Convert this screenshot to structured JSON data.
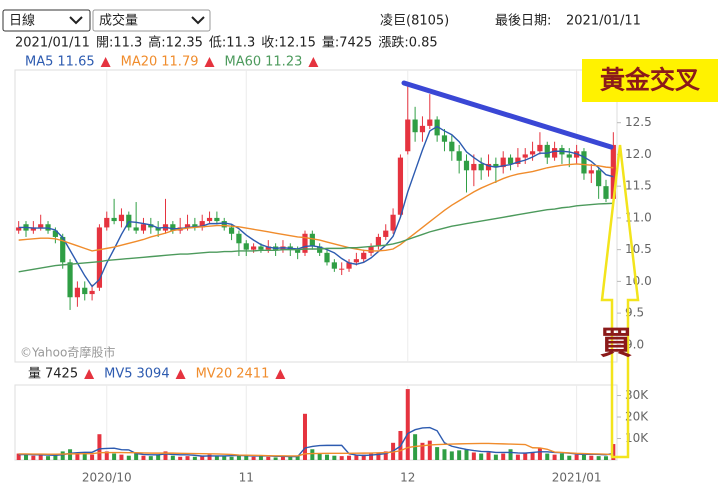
{
  "ui": {
    "period": "日線",
    "indicator": "成交量",
    "stock": "凌巨(8105)",
    "last_date_label": "最後日期:",
    "date": "2021/01/11",
    "info_labels": [
      "開:",
      "高:",
      "低:",
      "收:",
      "量:",
      "漲跌:"
    ],
    "change": 0.85,
    "annotation_cross": "黃金交叉",
    "annotation_buy": "買"
  },
  "chart_data": {
    "type": "candlestick",
    "categories": [
      null,
      null,
      null,
      null,
      null,
      null,
      null,
      null,
      null,
      null,
      null,
      null,
      "2020/10",
      null,
      null,
      null,
      null,
      null,
      null,
      null,
      null,
      null,
      null,
      null,
      null,
      null,
      null,
      null,
      null,
      null,
      null,
      "11",
      null,
      null,
      null,
      null,
      null,
      null,
      null,
      null,
      null,
      null,
      null,
      null,
      null,
      null,
      null,
      null,
      null,
      null,
      null,
      null,
      null,
      "12",
      null,
      null,
      null,
      null,
      null,
      null,
      null,
      null,
      null,
      null,
      null,
      null,
      null,
      null,
      null,
      null,
      null,
      null,
      null,
      null,
      null,
      null,
      "2021/01",
      null,
      null,
      null,
      null,
      null
    ],
    "open": [
      10.8,
      10.9,
      10.8,
      10.85,
      10.9,
      10.8,
      10.7,
      10.3,
      9.75,
      9.9,
      9.8,
      9.9,
      10.85,
      11.0,
      10.95,
      11.05,
      10.85,
      10.8,
      10.9,
      10.85,
      10.8,
      10.9,
      10.8,
      10.85,
      10.9,
      10.85,
      10.95,
      11.0,
      10.95,
      10.85,
      10.75,
      10.6,
      10.5,
      10.55,
      10.5,
      10.55,
      10.5,
      10.55,
      10.5,
      10.45,
      10.75,
      10.55,
      10.45,
      10.3,
      10.2,
      10.2,
      10.3,
      10.35,
      10.45,
      10.55,
      10.7,
      10.8,
      11.05,
      12.05,
      12.55,
      12.35,
      12.45,
      12.55,
      12.3,
      12.2,
      12.05,
      11.9,
      11.75,
      11.85,
      11.75,
      11.85,
      11.8,
      11.95,
      11.85,
      11.95,
      12.0,
      12.05,
      12.15,
      11.95,
      12.1,
      12.0,
      11.95,
      12.05,
      11.7,
      11.75,
      11.5,
      11.3
    ],
    "high": [
      10.95,
      10.95,
      10.95,
      11.05,
      10.95,
      10.85,
      10.75,
      10.35,
      10.0,
      10.0,
      9.95,
      10.9,
      11.1,
      11.3,
      11.15,
      11.1,
      11.25,
      11.0,
      11.0,
      10.95,
      11.3,
      10.95,
      11.0,
      11.05,
      11.0,
      11.05,
      11.1,
      11.1,
      11.0,
      10.9,
      10.8,
      10.65,
      10.6,
      10.6,
      10.65,
      10.6,
      10.65,
      10.6,
      10.55,
      10.8,
      10.8,
      10.6,
      10.5,
      10.35,
      10.3,
      10.35,
      10.45,
      10.5,
      10.6,
      10.75,
      10.9,
      11.15,
      12.0,
      13.1,
      12.75,
      12.6,
      12.95,
      12.6,
      12.4,
      12.3,
      12.15,
      12.0,
      12.0,
      11.95,
      12.0,
      11.95,
      12.05,
      12.0,
      12.1,
      12.1,
      12.2,
      12.35,
      12.2,
      12.2,
      12.15,
      12.1,
      12.15,
      12.1,
      11.85,
      11.8,
      11.6,
      12.35
    ],
    "low": [
      10.75,
      10.7,
      10.75,
      10.8,
      10.75,
      10.6,
      10.2,
      9.55,
      9.6,
      9.7,
      9.7,
      9.85,
      10.8,
      10.9,
      10.85,
      10.8,
      10.75,
      10.75,
      10.75,
      10.7,
      10.75,
      10.75,
      10.75,
      10.8,
      10.8,
      10.8,
      10.9,
      10.9,
      10.8,
      10.65,
      10.4,
      10.4,
      10.45,
      10.45,
      10.45,
      10.4,
      10.45,
      10.4,
      10.35,
      10.4,
      10.5,
      10.4,
      10.25,
      10.15,
      10.1,
      10.15,
      10.25,
      10.3,
      10.4,
      10.5,
      10.65,
      10.75,
      11.0,
      12.0,
      12.2,
      12.2,
      12.4,
      12.2,
      12.05,
      11.9,
      11.7,
      11.4,
      11.5,
      11.6,
      11.65,
      11.55,
      11.7,
      11.75,
      11.8,
      11.85,
      11.9,
      12.0,
      11.85,
      11.9,
      11.85,
      11.8,
      11.85,
      11.6,
      11.55,
      11.3,
      11.25,
      11.3
    ],
    "close": [
      10.85,
      10.8,
      10.85,
      10.9,
      10.8,
      10.7,
      10.3,
      9.75,
      9.9,
      9.8,
      9.85,
      10.85,
      11.0,
      10.95,
      11.05,
      10.85,
      10.8,
      10.9,
      10.85,
      10.8,
      10.9,
      10.8,
      10.85,
      10.9,
      10.85,
      10.95,
      11.0,
      10.95,
      10.85,
      10.75,
      10.6,
      10.5,
      10.55,
      10.5,
      10.55,
      10.5,
      10.55,
      10.5,
      10.45,
      10.75,
      10.55,
      10.45,
      10.3,
      10.2,
      10.2,
      10.3,
      10.35,
      10.45,
      10.55,
      10.7,
      10.8,
      11.05,
      11.95,
      12.55,
      12.35,
      12.45,
      12.55,
      12.3,
      12.2,
      12.05,
      11.9,
      11.75,
      11.85,
      11.75,
      11.85,
      11.8,
      11.95,
      11.85,
      11.95,
      12.0,
      12.05,
      12.15,
      11.95,
      12.1,
      12.0,
      11.95,
      12.05,
      11.7,
      11.75,
      11.5,
      11.3,
      12.15
    ],
    "volume": [
      3000,
      2500,
      2000,
      2200,
      1800,
      2500,
      4000,
      5000,
      3500,
      3000,
      2500,
      12000,
      4000,
      3000,
      2500,
      2000,
      3500,
      2000,
      1800,
      2500,
      4000,
      2000,
      1500,
      1800,
      1500,
      2000,
      2500,
      2000,
      1800,
      1500,
      2500,
      2000,
      1500,
      1800,
      1500,
      1200,
      1500,
      1800,
      2000,
      21500,
      5000,
      3000,
      2500,
      2000,
      1800,
      2000,
      2200,
      2500,
      3000,
      3500,
      4000,
      8000,
      13500,
      33000,
      12000,
      8000,
      9000,
      6000,
      5000,
      4000,
      4500,
      5000,
      3500,
      3000,
      3500,
      2500,
      3000,
      5000,
      2500,
      3000,
      3500,
      5500,
      3000,
      2500,
      3000,
      2000,
      2500,
      2500,
      2000,
      1800,
      1745,
      7425
    ],
    "up_color": "#e5333f",
    "down_color": "#2f9e44",
    "ylim": [
      8.73,
      13.33
    ],
    "yticks": [
      {
        "value": 9,
        "label": "9.0"
      },
      9.5,
      {
        "value": 10,
        "label": "10.0"
      },
      10.5,
      {
        "value": 11,
        "label": "11.0"
      },
      11.5,
      {
        "value": 12,
        "label": "12.0"
      },
      12.5
    ],
    "ma": [
      {
        "name": "MA5",
        "color": "#2d5bb0",
        "values": [
          10.85,
          10.85,
          10.84,
          10.84,
          10.84,
          10.81,
          10.69,
          10.49,
          10.29,
          10.09,
          9.92,
          10.03,
          10.29,
          10.51,
          10.74,
          10.94,
          10.93,
          10.91,
          10.89,
          10.84,
          10.85,
          10.83,
          10.83,
          10.85,
          10.86,
          10.87,
          10.91,
          10.91,
          10.92,
          10.9,
          10.83,
          10.73,
          10.65,
          10.58,
          10.54,
          10.52,
          10.53,
          10.52,
          10.51,
          10.55,
          10.56,
          10.54,
          10.5,
          10.45,
          10.36,
          10.29,
          10.27,
          10.3,
          10.37,
          10.47,
          10.57,
          10.71,
          11.01,
          11.41,
          11.74,
          12.07,
          12.37,
          12.44,
          12.37,
          12.31,
          12.2,
          12.04,
          11.95,
          11.87,
          11.82,
          11.8,
          11.82,
          11.84,
          11.88,
          11.91,
          11.96,
          12.02,
          12.02,
          12.05,
          12.05,
          12.04,
          12.01,
          11.96,
          11.89,
          11.79,
          11.68,
          11.65
        ]
      },
      {
        "name": "MA20",
        "color": "#f08c2c",
        "values": [
          10.65,
          10.66,
          10.67,
          10.68,
          10.68,
          10.67,
          10.64,
          10.6,
          10.56,
          10.52,
          10.48,
          10.5,
          10.52,
          10.54,
          10.57,
          10.6,
          10.63,
          10.66,
          10.7,
          10.73,
          10.76,
          10.8,
          10.82,
          10.84,
          10.85,
          10.86,
          10.87,
          10.88,
          10.88,
          10.87,
          10.86,
          10.84,
          10.82,
          10.8,
          10.78,
          10.76,
          10.74,
          10.72,
          10.7,
          10.69,
          10.67,
          10.65,
          10.62,
          10.59,
          10.56,
          10.53,
          10.51,
          10.49,
          10.48,
          10.48,
          10.49,
          10.51,
          10.58,
          10.67,
          10.76,
          10.85,
          10.94,
          11.03,
          11.12,
          11.2,
          11.27,
          11.34,
          11.41,
          11.47,
          11.52,
          11.57,
          11.62,
          11.66,
          11.69,
          11.71,
          11.73,
          11.76,
          11.79,
          11.81,
          11.83,
          11.84,
          11.85,
          11.84,
          11.83,
          11.82,
          11.8,
          11.79
        ]
      },
      {
        "name": "MA60",
        "color": "#4c9a5c",
        "values": [
          10.15,
          10.17,
          10.19,
          10.21,
          10.23,
          10.25,
          10.26,
          10.27,
          10.28,
          10.29,
          10.3,
          10.31,
          10.33,
          10.34,
          10.35,
          10.36,
          10.37,
          10.38,
          10.39,
          10.4,
          10.41,
          10.42,
          10.43,
          10.43,
          10.44,
          10.45,
          10.46,
          10.46,
          10.47,
          10.47,
          10.48,
          10.48,
          10.48,
          10.49,
          10.49,
          10.49,
          10.5,
          10.5,
          10.5,
          10.51,
          10.51,
          10.51,
          10.52,
          10.52,
          10.52,
          10.53,
          10.53,
          10.54,
          10.55,
          10.56,
          10.57,
          10.59,
          10.62,
          10.66,
          10.7,
          10.74,
          10.78,
          10.81,
          10.84,
          10.87,
          10.89,
          10.91,
          10.93,
          10.95,
          10.97,
          10.99,
          11.01,
          11.03,
          11.05,
          11.07,
          11.09,
          11.11,
          11.13,
          11.14,
          11.16,
          11.17,
          11.19,
          11.2,
          11.21,
          11.22,
          11.225,
          11.23
        ]
      }
    ],
    "volume_label": "量",
    "volume_ma": [
      {
        "name": "MV5",
        "color": "#2d5bb0",
        "values": [
          2500,
          2600,
          2500,
          2400,
          2300,
          2200,
          2500,
          3100,
          3400,
          3600,
          3600,
          5200,
          5400,
          5500,
          4800,
          4700,
          3000,
          2600,
          2400,
          2400,
          2800,
          2600,
          2400,
          2400,
          2200,
          1800,
          1900,
          1900,
          1900,
          2000,
          2100,
          2000,
          1900,
          1900,
          1900,
          1700,
          1700,
          1600,
          1600,
          5600,
          6300,
          6700,
          6800,
          6800,
          6800,
          2900,
          2300,
          2100,
          2300,
          2600,
          3000,
          4200,
          6400,
          12300,
          14100,
          14900,
          15100,
          13600,
          8000,
          6400,
          5600,
          4900,
          4400,
          4000,
          3900,
          3500,
          3500,
          3500,
          3300,
          3200,
          3500,
          3800,
          3800,
          3500,
          3400,
          3200,
          2800,
          2600,
          2700,
          2600,
          2400,
          3094
        ]
      },
      {
        "name": "MV20",
        "color": "#f08c2c",
        "values": [
          2800,
          2800,
          2750,
          2750,
          2700,
          2700,
          2750,
          2850,
          2900,
          2950,
          2950,
          3400,
          3450,
          3450,
          3450,
          3400,
          3400,
          3300,
          3200,
          3200,
          3250,
          3200,
          3100,
          3050,
          3000,
          2950,
          2900,
          2800,
          2700,
          2600,
          2300,
          2250,
          2200,
          2100,
          2000,
          1950,
          1950,
          1900,
          1900,
          2900,
          3000,
          3050,
          3100,
          3100,
          3100,
          3100,
          3150,
          3200,
          3250,
          3350,
          3450,
          3700,
          4300,
          5800,
          6300,
          6600,
          7000,
          7200,
          7300,
          7400,
          7500,
          7600,
          7650,
          7700,
          7700,
          7600,
          7500,
          7400,
          7300,
          7200,
          5700,
          5600,
          5000,
          3700,
          3500,
          3300,
          3100,
          3000,
          2900,
          2800,
          2700,
          2411
        ]
      }
    ],
    "volume_ylim": [
      0,
      34900
    ],
    "volume_yticks": [
      {
        "value": 10000,
        "label": "10K"
      },
      {
        "value": 20000,
        "label": "20K"
      },
      {
        "value": 30000,
        "label": "30K"
      }
    ],
    "watermark": "©Yahoo奇摩股市"
  }
}
